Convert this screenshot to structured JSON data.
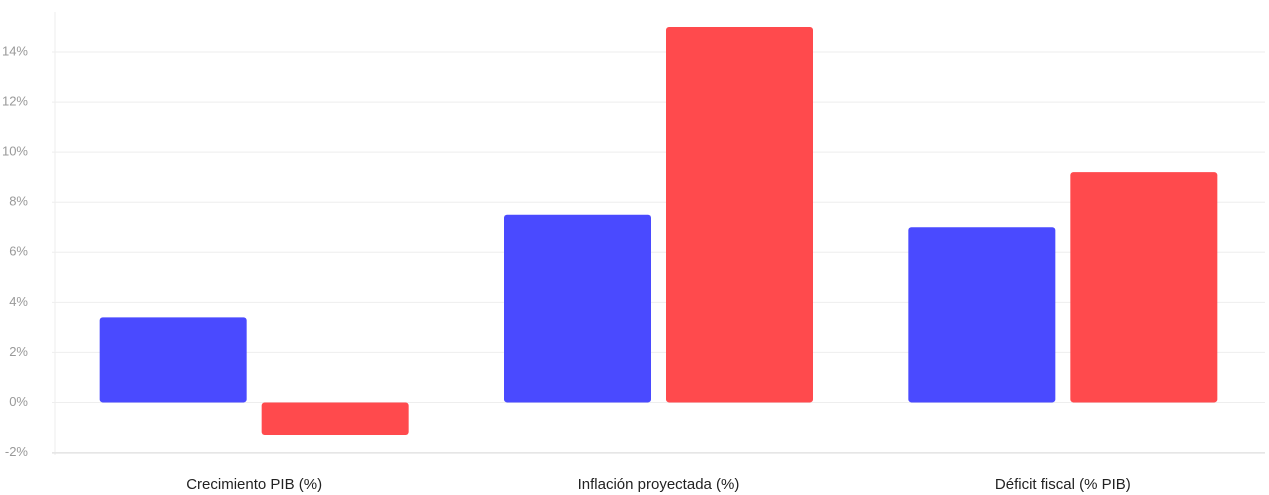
{
  "chart_data": {
    "type": "bar",
    "categories": [
      "Crecimiento PIB (%)",
      "Inflación proyectada (%)",
      "Déficit fiscal (% PIB)"
    ],
    "series": [
      {
        "color": "#4a4aff",
        "values": [
          3.4,
          7.5,
          7.0
        ]
      },
      {
        "color": "#ff4a4d",
        "values": [
          -1.3,
          15.0,
          9.2
        ]
      }
    ],
    "ylim": [
      -2.1,
      15.6
    ],
    "yticks": [
      {
        "value": -2,
        "label": "-2%"
      },
      {
        "value": 0,
        "label": "0%"
      },
      {
        "value": 2,
        "label": "2%"
      },
      {
        "value": 4,
        "label": "4%"
      },
      {
        "value": 6,
        "label": "6%"
      },
      {
        "value": 8,
        "label": "8%"
      },
      {
        "value": 10,
        "label": "10%"
      },
      {
        "value": 12,
        "label": "12%"
      },
      {
        "value": 14,
        "label": "14%"
      }
    ],
    "grid": true
  }
}
